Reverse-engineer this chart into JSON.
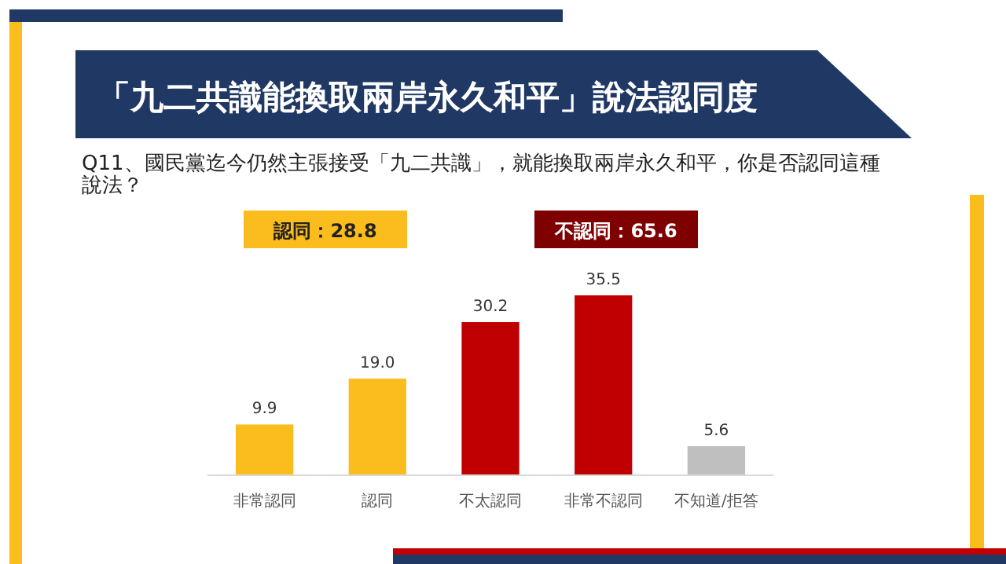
{
  "chart_data": {
    "type": "bar",
    "title": "「九二共識能換取兩岸永久和平」說法認同度",
    "subtitle": "Q11、國民黨迄今仍然主張接受「九二共識」，就能換取兩岸永久和平，你是否認同這種說法？",
    "annotations": [
      "認同：28.8",
      "不認同：65.6"
    ],
    "categories": [
      "非常認同",
      "認同",
      "不太認同",
      "非常不認同",
      "不知道/拒答"
    ],
    "values": [
      9.9,
      19.0,
      30.2,
      35.5,
      5.6
    ],
    "colors": [
      "#fbbd1d",
      "#fbbd1d",
      "#c00000",
      "#c00000",
      "#bfbfbf"
    ],
    "value_labels": [
      "9.9",
      "19.0",
      "30.2",
      "35.5",
      "5.6"
    ]
  }
}
